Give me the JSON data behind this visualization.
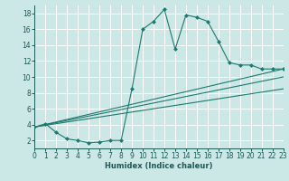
{
  "xlabel": "Humidex (Indice chaleur)",
  "background_color": "#cce8e6",
  "grid_color": "#ffffff",
  "line_color": "#1a7a6e",
  "xlim": [
    0,
    23
  ],
  "ylim": [
    1,
    19
  ],
  "xticks": [
    0,
    1,
    2,
    3,
    4,
    5,
    6,
    7,
    8,
    9,
    10,
    11,
    12,
    13,
    14,
    15,
    16,
    17,
    18,
    19,
    20,
    21,
    22,
    23
  ],
  "yticks": [
    2,
    4,
    6,
    8,
    10,
    12,
    14,
    16,
    18
  ],
  "curve_x": [
    0,
    1,
    2,
    3,
    4,
    5,
    6,
    7,
    8,
    9,
    10,
    11,
    12,
    13,
    14,
    15,
    16,
    17,
    18,
    19,
    20,
    21,
    22,
    23
  ],
  "curve_y": [
    3.7,
    4.1,
    3.0,
    2.2,
    2.0,
    1.7,
    1.8,
    2.0,
    2.0,
    8.5,
    16.0,
    17.0,
    18.5,
    13.5,
    17.8,
    17.5,
    17.0,
    14.5,
    11.8,
    11.5,
    11.5,
    11.0,
    11.0,
    11.0
  ],
  "straight_lines": [
    {
      "x": [
        0,
        23
      ],
      "y": [
        3.7,
        11.0
      ]
    },
    {
      "x": [
        0,
        23
      ],
      "y": [
        3.7,
        10.0
      ]
    },
    {
      "x": [
        0,
        23
      ],
      "y": [
        3.7,
        8.5
      ]
    }
  ]
}
